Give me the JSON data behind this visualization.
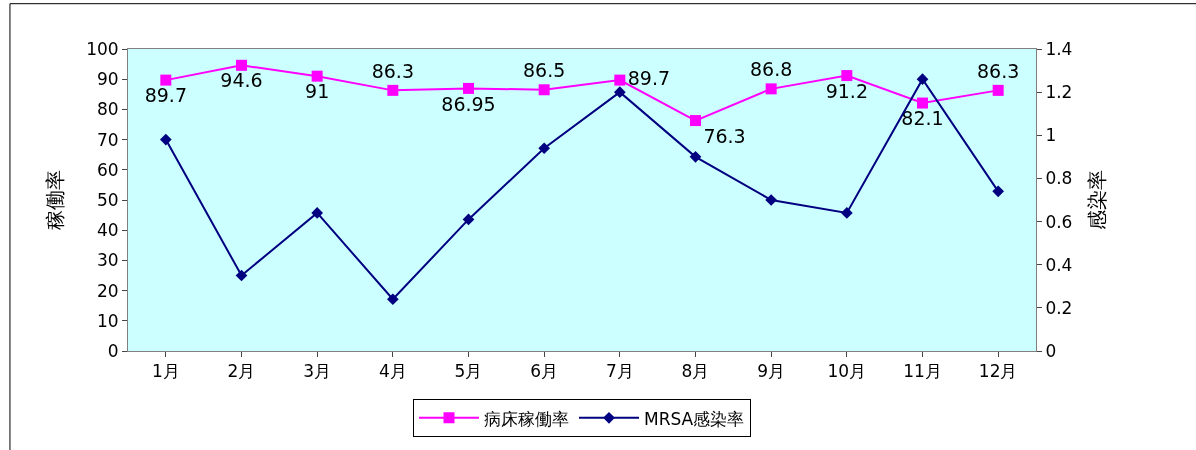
{
  "chart_data": {
    "type": "line",
    "ylabel": "稼働率",
    "y2label": "感染率",
    "categories": [
      "1月",
      "2月",
      "3月",
      "4月",
      "5月",
      "6月",
      "7月",
      "8月",
      "9月",
      "10月",
      "11月",
      "12月"
    ],
    "series": [
      {
        "name": "病床稼働率",
        "color": "#ff00ff",
        "marker": "square",
        "data_labels": true,
        "values": [
          89.7,
          94.6,
          91,
          86.3,
          86.95,
          86.5,
          89.7,
          76.3,
          86.8,
          91.2,
          82.1,
          86.3
        ]
      },
      {
        "name": "MRSA感染率",
        "color": "#000080",
        "marker": "diamond",
        "axis": "y2",
        "values": [
          0.98,
          0.35,
          0.64,
          0.24,
          0.61,
          0.94,
          1.2,
          0.9,
          0.7,
          0.64,
          1.26,
          0.74
        ]
      }
    ],
    "ylim": [
      0,
      100
    ],
    "yticks": [
      0,
      10,
      20,
      30,
      40,
      50,
      60,
      70,
      80,
      90,
      100
    ],
    "y2lim": [
      0,
      1.4
    ],
    "y2ticks": [
      0,
      0.2,
      0.4,
      0.6,
      0.8,
      1,
      1.2,
      1.4
    ],
    "grid": false,
    "legend": "bottom"
  }
}
